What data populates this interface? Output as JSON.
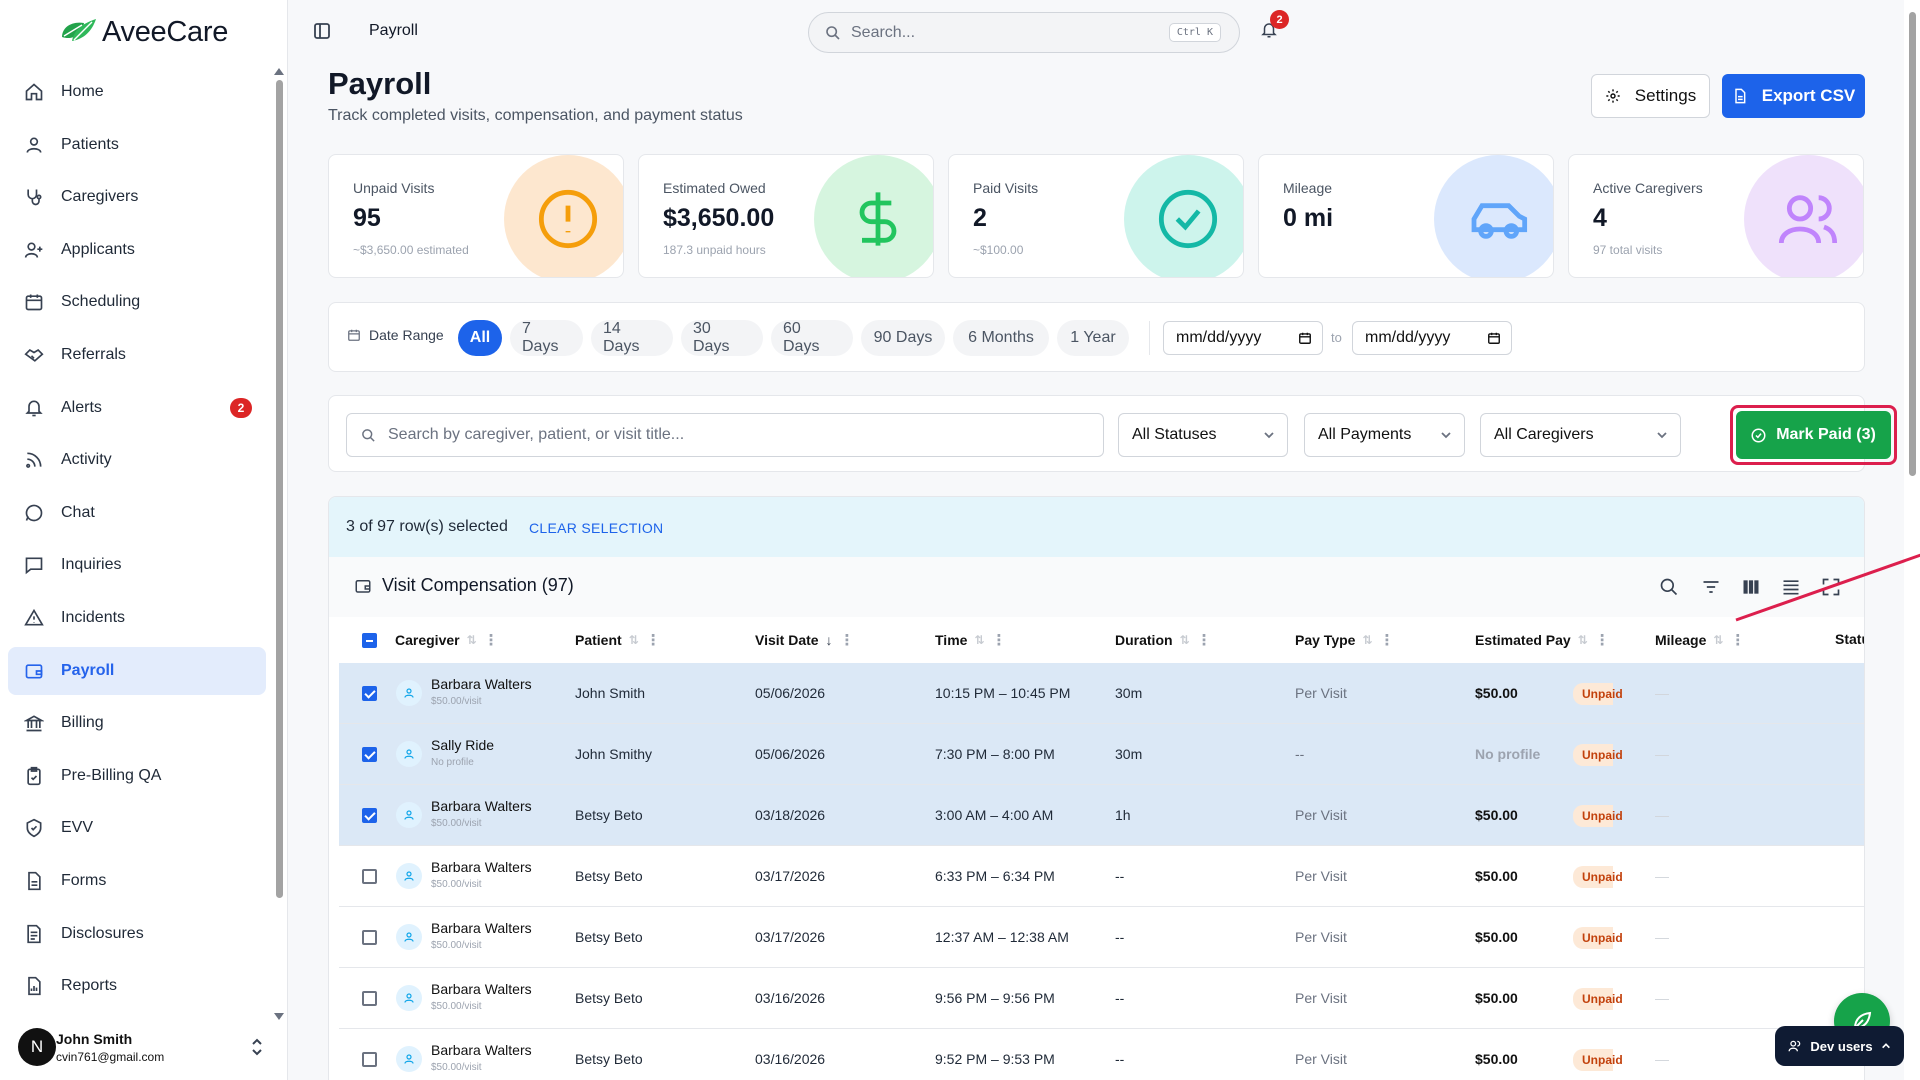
{
  "app": {
    "name": "AveeCare"
  },
  "sidebar": {
    "items": [
      {
        "label": "Home",
        "icon": "home-icon"
      },
      {
        "label": "Patients",
        "icon": "user-icon"
      },
      {
        "label": "Caregivers",
        "icon": "stethoscope-icon"
      },
      {
        "label": "Applicants",
        "icon": "user-plus-icon"
      },
      {
        "label": "Scheduling",
        "icon": "calendar-icon"
      },
      {
        "label": "Referrals",
        "icon": "handshake-icon"
      },
      {
        "label": "Alerts",
        "icon": "bell-icon",
        "badge": "2"
      },
      {
        "label": "Activity",
        "icon": "rss-icon"
      },
      {
        "label": "Chat",
        "icon": "message-circle-icon"
      },
      {
        "label": "Inquiries",
        "icon": "message-square-icon"
      },
      {
        "label": "Incidents",
        "icon": "alert-triangle-icon"
      },
      {
        "label": "Payroll",
        "icon": "wallet-icon",
        "active": true
      },
      {
        "label": "Billing",
        "icon": "bank-icon"
      },
      {
        "label": "Pre-Billing QA",
        "icon": "clipboard-check-icon"
      },
      {
        "label": "EVV",
        "icon": "shield-check-icon"
      },
      {
        "label": "Forms",
        "icon": "file-icon"
      },
      {
        "label": "Disclosures",
        "icon": "file-text-icon"
      },
      {
        "label": "Reports",
        "icon": "report-icon"
      }
    ],
    "user": {
      "initial": "N",
      "name": "John Smith",
      "email": "cvin761@gmail.com"
    }
  },
  "topbar": {
    "breadcrumb": "Payroll",
    "search_placeholder": "Search...",
    "shortcut": "Ctrl K",
    "notification_count": "2"
  },
  "header": {
    "title": "Payroll",
    "subtitle": "Track completed visits, compensation, and payment status",
    "settings_label": "Settings",
    "export_label": "Export CSV"
  },
  "stats": [
    {
      "label": "Unpaid Visits",
      "value": "95",
      "sub": "~$3,650.00 estimated",
      "icon": "alert-circle-icon",
      "color": "#fde7cf",
      "icon_color": "#f59e0b"
    },
    {
      "label": "Estimated Owed",
      "value": "$3,650.00",
      "sub": "187.3 unpaid hours",
      "icon": "dollar-icon",
      "color": "#d6f5df",
      "icon_color": "#22c55e"
    },
    {
      "label": "Paid Visits",
      "value": "2",
      "sub": "~$100.00",
      "icon": "check-circle-icon",
      "color": "#cdf4ec",
      "icon_color": "#14b8a6"
    },
    {
      "label": "Mileage",
      "value": "0 mi",
      "sub": "",
      "icon": "car-icon",
      "color": "#dbe8fd",
      "icon_color": "#60a5fa"
    },
    {
      "label": "Active Caregivers",
      "value": "4",
      "sub": "97 total visits",
      "icon": "users-icon",
      "color": "#efe1fb",
      "icon_color": "#c084fc"
    }
  ],
  "date_range": {
    "label": "Date Range",
    "options": [
      "All",
      "7 Days",
      "14 Days",
      "30 Days",
      "60 Days",
      "90 Days",
      "6 Months",
      "1 Year"
    ],
    "selected": "All",
    "from_placeholder": "mm/dd/yyyy",
    "to_label": "to",
    "to_placeholder": "mm/dd/yyyy"
  },
  "filters": {
    "search_placeholder": "Search by caregiver, patient, or visit title...",
    "status": "All Statuses",
    "payments": "All Payments",
    "caregivers": "All Caregivers",
    "mark_paid_label": "Mark Paid (3)"
  },
  "selection": {
    "text": "3 of 97 row(s) selected",
    "clear_label": "CLEAR SELECTION"
  },
  "table": {
    "title": "Visit Compensation (97)",
    "columns": [
      "Caregiver",
      "Patient",
      "Visit Date",
      "Time",
      "Duration",
      "Pay Type",
      "Estimated Pay",
      "Mileage",
      "Status"
    ],
    "rows": [
      {
        "selected": true,
        "caregiver": "Barbara Walters",
        "rate": "$50.00/visit",
        "patient": "John Smith",
        "date": "05/06/2026",
        "time": "10:15 PM – 10:45 PM",
        "duration": "30m",
        "pay_type": "Per Visit",
        "est_pay": "$50.00",
        "mileage": "—",
        "status": "Unpaid"
      },
      {
        "selected": true,
        "caregiver": "Sally Ride",
        "rate": "No profile",
        "patient": "John Smithy",
        "date": "05/06/2026",
        "time": "7:30 PM – 8:00 PM",
        "duration": "30m",
        "pay_type": "--",
        "est_pay": "No profile",
        "mileage": "—",
        "status": "Unpaid"
      },
      {
        "selected": true,
        "caregiver": "Barbara Walters",
        "rate": "$50.00/visit",
        "patient": "Betsy Beto",
        "date": "03/18/2026",
        "time": "3:00 AM – 4:00 AM",
        "duration": "1h",
        "pay_type": "Per Visit",
        "est_pay": "$50.00",
        "mileage": "—",
        "status": "Unpaid"
      },
      {
        "selected": false,
        "caregiver": "Barbara Walters",
        "rate": "$50.00/visit",
        "patient": "Betsy Beto",
        "date": "03/17/2026",
        "time": "6:33 PM – 6:34 PM",
        "duration": "--",
        "pay_type": "Per Visit",
        "est_pay": "$50.00",
        "mileage": "—",
        "status": "Unpaid"
      },
      {
        "selected": false,
        "caregiver": "Barbara Walters",
        "rate": "$50.00/visit",
        "patient": "Betsy Beto",
        "date": "03/17/2026",
        "time": "12:37 AM – 12:38 AM",
        "duration": "--",
        "pay_type": "Per Visit",
        "est_pay": "$50.00",
        "mileage": "—",
        "status": "Unpaid"
      },
      {
        "selected": false,
        "caregiver": "Barbara Walters",
        "rate": "$50.00/visit",
        "patient": "Betsy Beto",
        "date": "03/16/2026",
        "time": "9:56 PM – 9:56 PM",
        "duration": "--",
        "pay_type": "Per Visit",
        "est_pay": "$50.00",
        "mileage": "—",
        "status": "Unpaid"
      },
      {
        "selected": false,
        "caregiver": "Barbara Walters",
        "rate": "$50.00/visit",
        "patient": "Betsy Beto",
        "date": "03/16/2026",
        "time": "9:52 PM – 9:53 PM",
        "duration": "--",
        "pay_type": "Per Visit",
        "est_pay": "$50.00",
        "mileage": "—",
        "status": "Unpaid"
      }
    ]
  },
  "dev": {
    "label": "Dev users"
  },
  "colors": {
    "primary": "#1d63ea",
    "success": "#16a34a",
    "danger": "#dc2626",
    "highlight": "#dc1f4d"
  }
}
